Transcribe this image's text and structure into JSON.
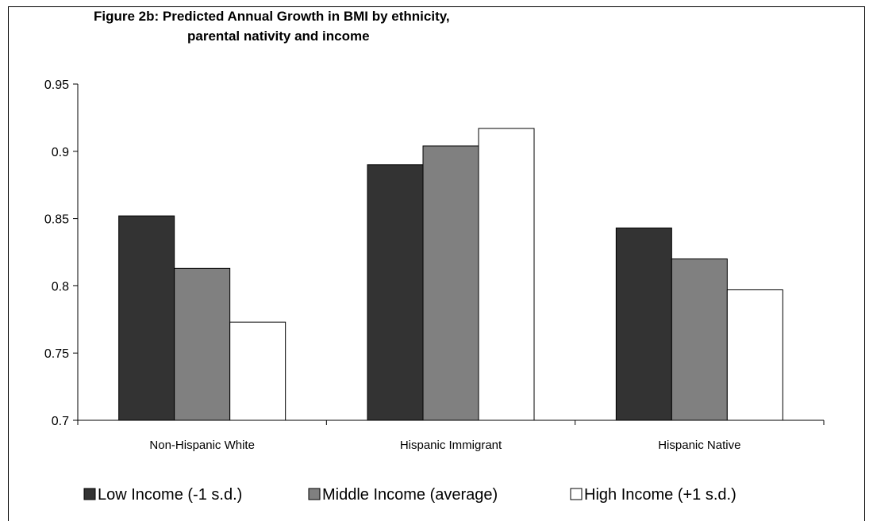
{
  "chart_data": {
    "type": "bar",
    "title": [
      "Figure 2b: Predicted Annual Growth in BMI by ethnicity,",
      "parental nativity and income"
    ],
    "xlabel": "",
    "ylabel": "",
    "categories": [
      "Non-Hispanic White",
      "Hispanic Immigrant",
      "Hispanic Native"
    ],
    "series": [
      {
        "name": "Low Income (-1 s.d.)",
        "values": [
          0.852,
          0.89,
          0.843
        ],
        "color": "#333333"
      },
      {
        "name": "Middle Income (average)",
        "values": [
          0.813,
          0.904,
          0.82
        ],
        "color": "#808080"
      },
      {
        "name": "High Income (+1 s.d.)",
        "values": [
          0.773,
          0.917,
          0.797
        ],
        "color": "#ffffff"
      }
    ],
    "ylim": [
      0.7,
      0.95
    ],
    "yticks": [
      "0.7",
      "0.75",
      "0.8",
      "0.85",
      "0.9",
      "0.95"
    ],
    "grid": false,
    "legend_position": "bottom"
  }
}
